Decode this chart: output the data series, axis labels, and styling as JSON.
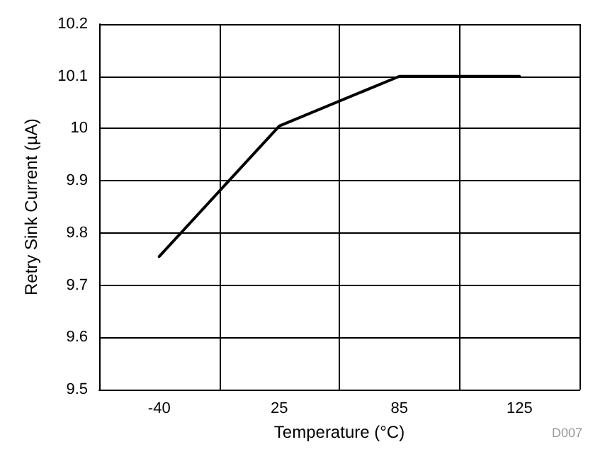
{
  "chart_data": {
    "type": "line",
    "xlabel": "Temperature (°C)",
    "ylabel": "Retry Sink Current (µA)",
    "categories": [
      "-40",
      "25",
      "85",
      "125"
    ],
    "series": [
      {
        "color": "#000000",
        "values": [
          9.755,
          10.005,
          10.1,
          10.1
        ]
      }
    ],
    "ylim": [
      9.5,
      10.2
    ],
    "yticks": [
      9.5,
      9.6,
      9.7,
      9.8,
      9.9,
      10,
      10.1,
      10.2
    ],
    "grid": true,
    "marker": "none",
    "line_style": "solid",
    "annotations": [
      "D007"
    ]
  }
}
